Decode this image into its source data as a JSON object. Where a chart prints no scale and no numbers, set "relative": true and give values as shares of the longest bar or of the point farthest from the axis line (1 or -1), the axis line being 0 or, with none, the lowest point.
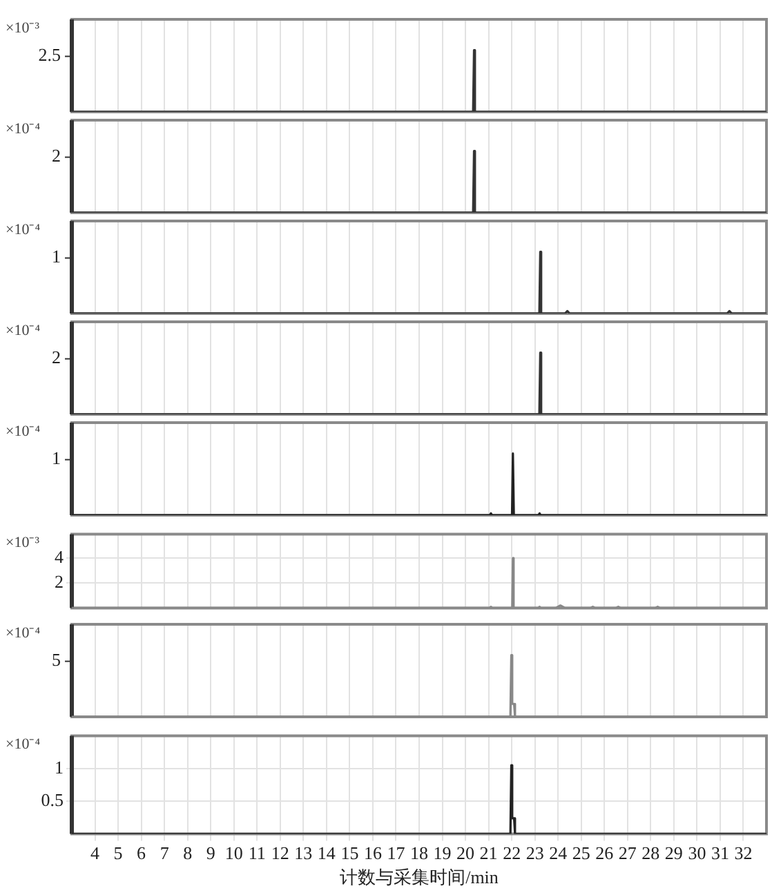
{
  "chart_data": [
    {
      "type": "line",
      "relative": true,
      "annotations": [
        "×10⁻³",
        "2.5"
      ],
      "xlim": [
        3,
        33
      ],
      "xticks": [
        4,
        5,
        6,
        7,
        8,
        9,
        10,
        11,
        12,
        13,
        14,
        15,
        16,
        17,
        18,
        19,
        20,
        21,
        22,
        23,
        24,
        25,
        26,
        27,
        28,
        29,
        30,
        31,
        32
      ],
      "grid": "x",
      "tick_labels": false,
      "series": [
        {
          "color": "#333333",
          "x": [
            3,
            20.33,
            20.37,
            20.41,
            33
          ],
          "values": [
            0,
            0,
            1,
            0,
            0
          ]
        }
      ]
    },
    {
      "type": "line",
      "relative": true,
      "annotations": [
        "×10⁻⁴",
        "2"
      ],
      "xlim": [
        3,
        33
      ],
      "xticks": [
        4,
        5,
        6,
        7,
        8,
        9,
        10,
        11,
        12,
        13,
        14,
        15,
        16,
        17,
        18,
        19,
        20,
        21,
        22,
        23,
        24,
        25,
        26,
        27,
        28,
        29,
        30,
        31,
        32
      ],
      "grid": "x",
      "tick_labels": false,
      "series": [
        {
          "color": "#333333",
          "x": [
            3,
            20.33,
            20.37,
            20.41,
            33
          ],
          "values": [
            0,
            0,
            1,
            0,
            0
          ]
        }
      ]
    },
    {
      "type": "line",
      "relative": true,
      "annotations": [
        "×10⁻⁴",
        "1"
      ],
      "xlim": [
        3,
        33
      ],
      "xticks": [
        4,
        5,
        6,
        7,
        8,
        9,
        10,
        11,
        12,
        13,
        14,
        15,
        16,
        17,
        18,
        19,
        20,
        21,
        22,
        23,
        24,
        25,
        26,
        27,
        28,
        29,
        30,
        31,
        32
      ],
      "grid": "x",
      "tick_labels": false,
      "series": [
        {
          "color": "#333333",
          "x": [
            3,
            23.19,
            23.23,
            23.27,
            24.3,
            24.4,
            24.5,
            31.3,
            31.4,
            31.5,
            33
          ],
          "values": [
            0,
            0,
            1,
            0,
            0,
            0.04,
            0,
            0,
            0.04,
            0,
            0
          ]
        }
      ]
    },
    {
      "type": "line",
      "relative": true,
      "annotations": [
        "×10⁻⁴",
        "2"
      ],
      "xlim": [
        3,
        33
      ],
      "xticks": [
        4,
        5,
        6,
        7,
        8,
        9,
        10,
        11,
        12,
        13,
        14,
        15,
        16,
        17,
        18,
        19,
        20,
        21,
        22,
        23,
        24,
        25,
        26,
        27,
        28,
        29,
        30,
        31,
        32
      ],
      "grid": "x",
      "tick_labels": false,
      "series": [
        {
          "color": "#333333",
          "x": [
            3,
            23.19,
            23.23,
            23.27,
            33
          ],
          "values": [
            0,
            0,
            1,
            0,
            0
          ]
        }
      ]
    },
    {
      "type": "line",
      "relative": true,
      "annotations": [
        "×10⁻⁴",
        "1"
      ],
      "xlim": [
        3,
        33
      ],
      "xticks": [
        4,
        5,
        6,
        7,
        8,
        9,
        10,
        11,
        12,
        13,
        14,
        15,
        16,
        17,
        18,
        19,
        20,
        21,
        22,
        23,
        24,
        25,
        26,
        27,
        28,
        29,
        30,
        31,
        32
      ],
      "grid": "x",
      "tick_labels": false,
      "series": [
        {
          "color": "#222222",
          "x": [
            3,
            21.05,
            21.1,
            21.15,
            22.01,
            22.05,
            22.09,
            23.15,
            23.2,
            23.25,
            33
          ],
          "values": [
            0,
            0,
            0.03,
            0,
            0,
            1,
            0,
            0,
            0.03,
            0,
            0
          ]
        }
      ]
    },
    {
      "type": "line",
      "annotations": [
        "×10⁻³"
      ],
      "xlim": [
        3,
        33
      ],
      "xticks": [
        4,
        5,
        6,
        7,
        8,
        9,
        10,
        11,
        12,
        13,
        14,
        15,
        16,
        17,
        18,
        19,
        20,
        21,
        22,
        23,
        24,
        25,
        26,
        27,
        28,
        29,
        30,
        31,
        32
      ],
      "ylim": [
        0,
        5.9
      ],
      "yticks": [
        2,
        4
      ],
      "grid": true,
      "tick_labels": "y",
      "series": [
        {
          "color": "#888888",
          "x": [
            3,
            21.05,
            21.1,
            21.15,
            22.02,
            22.05,
            22.08,
            23.15,
            23.2,
            23.25,
            23.9,
            24.1,
            24.3,
            25.4,
            25.5,
            25.6,
            26.5,
            26.6,
            26.7,
            28.2,
            28.3,
            28.4,
            33
          ],
          "values": [
            0,
            0,
            0.1,
            0,
            0,
            4,
            0,
            0,
            0.1,
            0,
            0,
            0.2,
            0,
            0,
            0.1,
            0,
            0,
            0.1,
            0,
            0,
            0.1,
            0,
            0
          ]
        }
      ]
    },
    {
      "type": "line",
      "relative": true,
      "annotations": [
        "×10⁻⁴",
        "5"
      ],
      "xlim": [
        3,
        33
      ],
      "xticks": [
        4,
        5,
        6,
        7,
        8,
        9,
        10,
        11,
        12,
        13,
        14,
        15,
        16,
        17,
        18,
        19,
        20,
        21,
        22,
        23,
        24,
        25,
        26,
        27,
        28,
        29,
        30,
        31,
        32
      ],
      "grid": "x",
      "tick_labels": false,
      "series": [
        {
          "color": "#888888",
          "x": [
            3,
            21.94,
            21.98,
            22.02,
            22.06,
            22.1,
            22.14,
            33
          ],
          "values": [
            0,
            0,
            1,
            0.21,
            0.21,
            0.21,
            0,
            0
          ]
        }
      ]
    },
    {
      "type": "line",
      "annotations": [
        "×10⁻⁴"
      ],
      "xlabel": "计数与采集时间/min",
      "xlim": [
        3,
        33
      ],
      "xticks": [
        4,
        5,
        6,
        7,
        8,
        9,
        10,
        11,
        12,
        13,
        14,
        15,
        16,
        17,
        18,
        19,
        20,
        21,
        22,
        23,
        24,
        25,
        26,
        27,
        28,
        29,
        30,
        31,
        32
      ],
      "ylim": [
        0,
        1.5
      ],
      "yticks": [
        0.5,
        1
      ],
      "grid": true,
      "series": [
        {
          "color": "#222222",
          "x": [
            3,
            21.94,
            21.98,
            22.02,
            22.06,
            22.1,
            22.14,
            33
          ],
          "values": [
            0,
            0,
            1.05,
            0.24,
            0.24,
            0.24,
            0,
            0
          ]
        }
      ]
    }
  ]
}
